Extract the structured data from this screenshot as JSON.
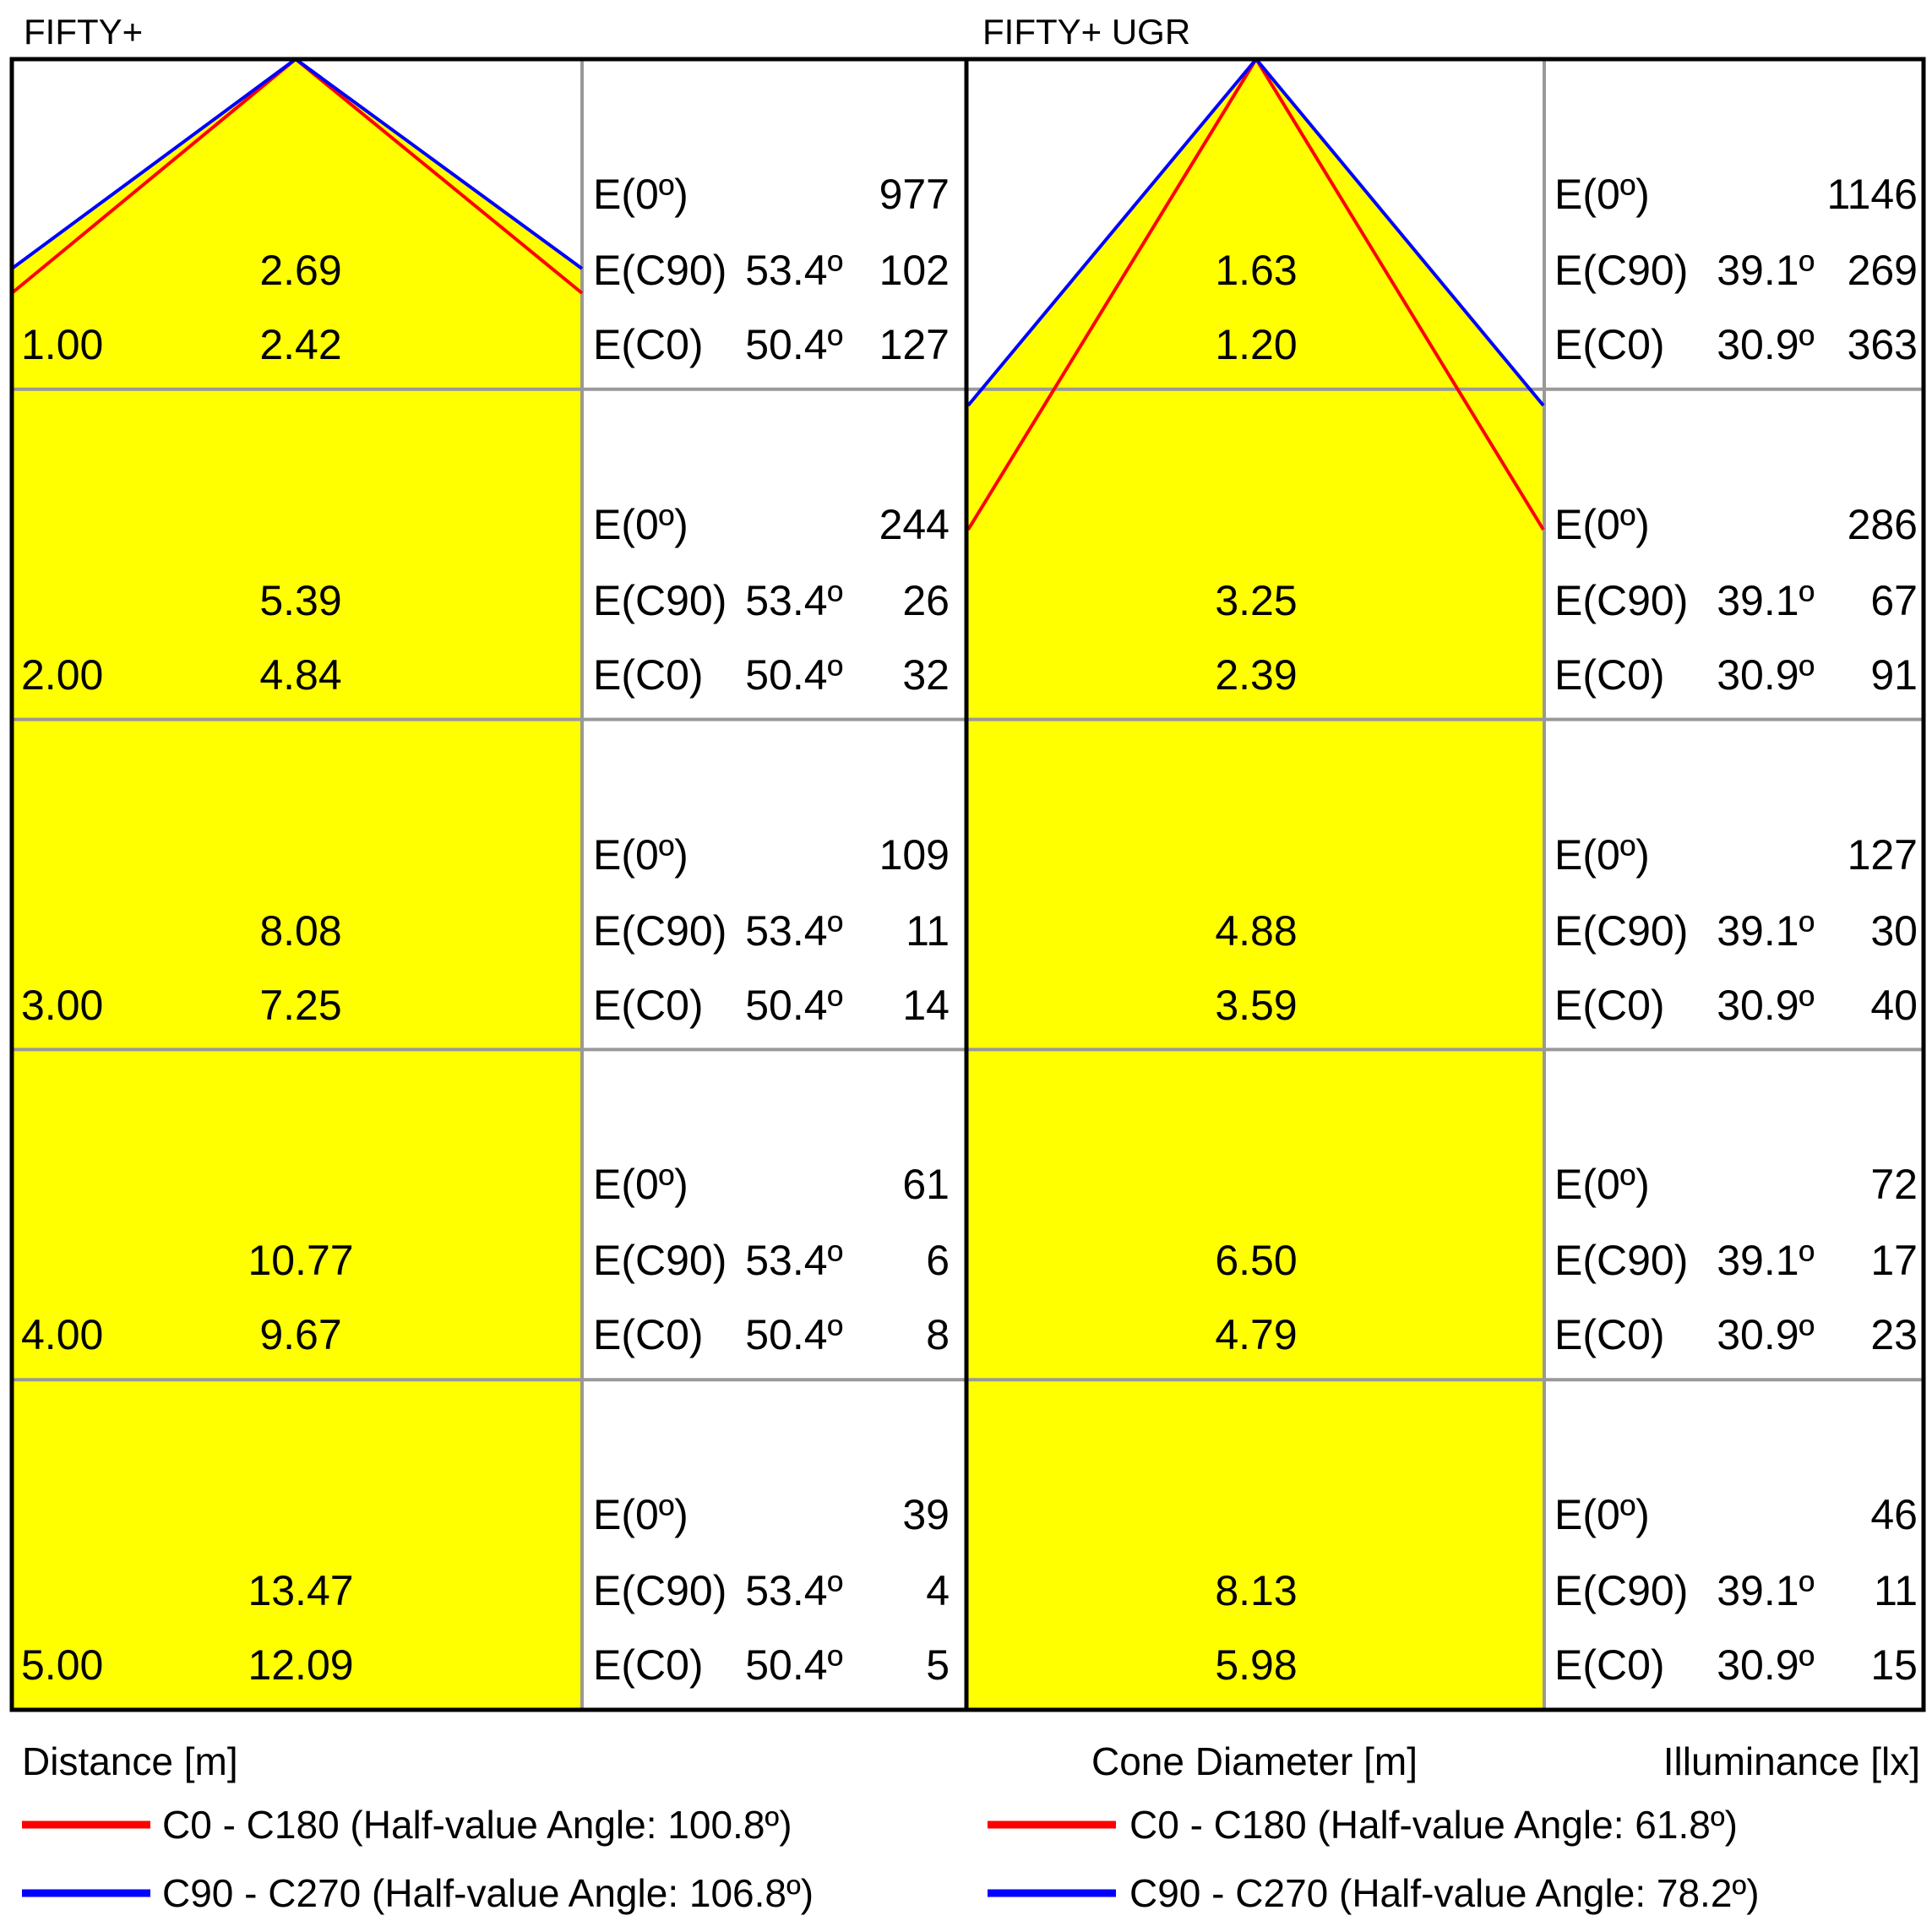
{
  "titles": {
    "left": "FIFTY+",
    "right": "FIFTY+ UGR"
  },
  "labels": {
    "e0": "E(0º)",
    "ec90": "E(C90)",
    "ec0": "E(C0)",
    "distance_caption": "Distance [m]",
    "cone_diameter_caption": "Cone Diameter [m]",
    "illuminance_caption": "Illuminance [lx]"
  },
  "left_diagram": {
    "title": "FIFTY+",
    "ec90_angle": "53.4º",
    "ec0_angle": "50.4º",
    "legend": {
      "c0": "C0 - C180 (Half-value Angle: 100.8º)",
      "c90": "C90 - C270 (Half-value Angle: 106.8º)"
    },
    "rows": [
      {
        "distance": "1.00",
        "cone_c90": "2.69",
        "cone_c0": "2.42",
        "e0": "977",
        "ec90": "102",
        "ec0": "127"
      },
      {
        "distance": "2.00",
        "cone_c90": "5.39",
        "cone_c0": "4.84",
        "e0": "244",
        "ec90": "26",
        "ec0": "32"
      },
      {
        "distance": "3.00",
        "cone_c90": "8.08",
        "cone_c0": "7.25",
        "e0": "109",
        "ec90": "11",
        "ec0": "14"
      },
      {
        "distance": "4.00",
        "cone_c90": "10.77",
        "cone_c0": "9.67",
        "e0": "61",
        "ec90": "6",
        "ec0": "8"
      },
      {
        "distance": "5.00",
        "cone_c90": "13.47",
        "cone_c0": "12.09",
        "e0": "39",
        "ec90": "4",
        "ec0": "5"
      }
    ]
  },
  "right_diagram": {
    "title": "FIFTY+ UGR",
    "ec90_angle": "39.1º",
    "ec0_angle": "30.9º",
    "legend": {
      "c0": "C0 - C180 (Half-value Angle: 61.8º)",
      "c90": "C90 - C270 (Half-value Angle: 78.2º)"
    },
    "rows": [
      {
        "cone_c90": "1.63",
        "cone_c0": "1.20",
        "e0": "1146",
        "ec90": "269",
        "ec0": "363"
      },
      {
        "cone_c90": "3.25",
        "cone_c0": "2.39",
        "e0": "286",
        "ec90": "67",
        "ec0": "91"
      },
      {
        "cone_c90": "4.88",
        "cone_c0": "3.59",
        "e0": "127",
        "ec90": "30",
        "ec0": "40"
      },
      {
        "cone_c90": "6.50",
        "cone_c0": "4.79",
        "e0": "72",
        "ec90": "17",
        "ec0": "23"
      },
      {
        "cone_c90": "8.13",
        "cone_c0": "5.98",
        "e0": "46",
        "ec90": "11",
        "ec0": "15"
      }
    ]
  },
  "colors": {
    "cone_fill": "#FFFF00",
    "c0_line": "#FF0000",
    "c90_line": "#0000FF",
    "grid_line": "#999999",
    "border": "#000000"
  }
}
